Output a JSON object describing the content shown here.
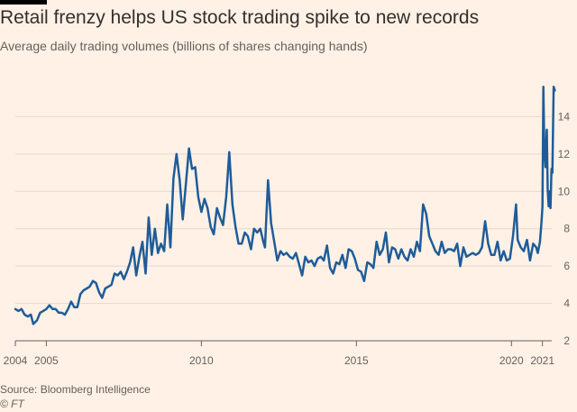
{
  "header": {
    "title": "Retail frenzy helps US stock trading spike to new records",
    "subtitle": "Average daily trading volumes (billions of shares changing hands)"
  },
  "footer": {
    "source": "Source: Bloomberg Intelligence",
    "credit": "© FT"
  },
  "colors": {
    "background": "#fff1e5",
    "line": "#1f5c99",
    "grid": "#e3d9cf",
    "text": "#66605c"
  },
  "chart_data": {
    "type": "line",
    "title": "Retail frenzy helps US stock trading spike to new records",
    "subtitle": "Average daily trading volumes (billions of shares changing hands)",
    "xlabel": "",
    "ylabel": "",
    "xlim": [
      2004.0,
      2021.3
    ],
    "ylim": [
      2,
      16
    ],
    "y_ticks": [
      2,
      4,
      6,
      8,
      10,
      12,
      14
    ],
    "x_tick_labels": [
      {
        "value": 2004.0,
        "label": "2004"
      },
      {
        "value": 2005.0,
        "label": "2005"
      },
      {
        "value": 2010.0,
        "label": "2010"
      },
      {
        "value": 2015.0,
        "label": "2015"
      },
      {
        "value": 2020.0,
        "label": "2020"
      },
      {
        "value": 2021.0,
        "label": "2021"
      }
    ],
    "grid": true,
    "series": [
      {
        "values": [
          [
            2004.0,
            3.7
          ],
          [
            2004.1,
            3.6
          ],
          [
            2004.2,
            3.7
          ],
          [
            2004.3,
            3.4
          ],
          [
            2004.4,
            3.3
          ],
          [
            2004.5,
            3.4
          ],
          [
            2004.58,
            2.9
          ],
          [
            2004.7,
            3.1
          ],
          [
            2004.8,
            3.5
          ],
          [
            2004.9,
            3.6
          ],
          [
            2005.0,
            3.7
          ],
          [
            2005.1,
            3.9
          ],
          [
            2005.2,
            3.7
          ],
          [
            2005.3,
            3.7
          ],
          [
            2005.4,
            3.5
          ],
          [
            2005.5,
            3.5
          ],
          [
            2005.6,
            3.4
          ],
          [
            2005.7,
            3.7
          ],
          [
            2005.8,
            4.1
          ],
          [
            2005.9,
            3.8
          ],
          [
            2006.0,
            3.8
          ],
          [
            2006.1,
            4.5
          ],
          [
            2006.2,
            4.7
          ],
          [
            2006.3,
            4.8
          ],
          [
            2006.4,
            4.9
          ],
          [
            2006.5,
            5.2
          ],
          [
            2006.6,
            5.1
          ],
          [
            2006.7,
            4.6
          ],
          [
            2006.8,
            4.3
          ],
          [
            2006.9,
            4.8
          ],
          [
            2007.0,
            4.9
          ],
          [
            2007.1,
            5.0
          ],
          [
            2007.2,
            5.6
          ],
          [
            2007.3,
            5.5
          ],
          [
            2007.4,
            5.7
          ],
          [
            2007.5,
            5.3
          ],
          [
            2007.6,
            5.7
          ],
          [
            2007.7,
            6.2
          ],
          [
            2007.8,
            7.0
          ],
          [
            2007.9,
            5.5
          ],
          [
            2008.0,
            6.5
          ],
          [
            2008.1,
            7.3
          ],
          [
            2008.2,
            5.6
          ],
          [
            2008.3,
            8.6
          ],
          [
            2008.4,
            6.6
          ],
          [
            2008.5,
            8.0
          ],
          [
            2008.6,
            6.7
          ],
          [
            2008.7,
            7.2
          ],
          [
            2008.8,
            6.8
          ],
          [
            2008.9,
            9.3
          ],
          [
            2009.0,
            7.0
          ],
          [
            2009.1,
            10.7
          ],
          [
            2009.2,
            12.0
          ],
          [
            2009.3,
            10.6
          ],
          [
            2009.4,
            8.5
          ],
          [
            2009.5,
            10.4
          ],
          [
            2009.6,
            12.3
          ],
          [
            2009.7,
            11.2
          ],
          [
            2009.8,
            11.3
          ],
          [
            2009.9,
            9.7
          ],
          [
            2010.0,
            8.9
          ],
          [
            2010.1,
            9.6
          ],
          [
            2010.2,
            9.1
          ],
          [
            2010.3,
            8.1
          ],
          [
            2010.4,
            7.7
          ],
          [
            2010.5,
            9.1
          ],
          [
            2010.6,
            8.6
          ],
          [
            2010.7,
            8.2
          ],
          [
            2010.8,
            9.7
          ],
          [
            2010.9,
            12.1
          ],
          [
            2011.0,
            9.3
          ],
          [
            2011.1,
            8.1
          ],
          [
            2011.2,
            7.2
          ],
          [
            2011.3,
            7.2
          ],
          [
            2011.4,
            7.8
          ],
          [
            2011.5,
            7.6
          ],
          [
            2011.6,
            6.9
          ],
          [
            2011.7,
            8.0
          ],
          [
            2011.8,
            7.8
          ],
          [
            2011.9,
            8.0
          ],
          [
            2012.0,
            7.3
          ],
          [
            2012.05,
            7.0
          ],
          [
            2012.15,
            10.6
          ],
          [
            2012.25,
            8.3
          ],
          [
            2012.35,
            7.3
          ],
          [
            2012.45,
            6.3
          ],
          [
            2012.55,
            6.8
          ],
          [
            2012.65,
            6.6
          ],
          [
            2012.75,
            6.7
          ],
          [
            2012.85,
            6.5
          ],
          [
            2012.95,
            6.4
          ],
          [
            2013.05,
            6.7
          ],
          [
            2013.15,
            6.1
          ],
          [
            2013.25,
            5.5
          ],
          [
            2013.35,
            6.5
          ],
          [
            2013.45,
            6.2
          ],
          [
            2013.55,
            6.3
          ],
          [
            2013.65,
            6.0
          ],
          [
            2013.75,
            6.4
          ],
          [
            2013.85,
            6.5
          ],
          [
            2013.95,
            6.3
          ],
          [
            2014.05,
            7.1
          ],
          [
            2014.15,
            5.9
          ],
          [
            2014.25,
            5.6
          ],
          [
            2014.35,
            6.2
          ],
          [
            2014.45,
            6.1
          ],
          [
            2014.55,
            6.6
          ],
          [
            2014.65,
            5.9
          ],
          [
            2014.75,
            6.9
          ],
          [
            2014.85,
            6.8
          ],
          [
            2014.95,
            6.4
          ],
          [
            2015.05,
            5.8
          ],
          [
            2015.15,
            5.7
          ],
          [
            2015.25,
            5.2
          ],
          [
            2015.35,
            6.2
          ],
          [
            2015.45,
            6.1
          ],
          [
            2015.55,
            5.9
          ],
          [
            2015.65,
            7.3
          ],
          [
            2015.75,
            6.6
          ],
          [
            2015.85,
            6.9
          ],
          [
            2015.95,
            7.8
          ],
          [
            2016.05,
            6.2
          ],
          [
            2016.15,
            7.0
          ],
          [
            2016.25,
            6.9
          ],
          [
            2016.35,
            6.4
          ],
          [
            2016.45,
            6.9
          ],
          [
            2016.55,
            6.5
          ],
          [
            2016.65,
            6.3
          ],
          [
            2016.75,
            6.9
          ],
          [
            2016.85,
            6.5
          ],
          [
            2016.95,
            7.3
          ],
          [
            2017.05,
            6.8
          ],
          [
            2017.15,
            9.3
          ],
          [
            2017.25,
            8.8
          ],
          [
            2017.35,
            7.6
          ],
          [
            2017.45,
            7.2
          ],
          [
            2017.55,
            6.8
          ],
          [
            2017.65,
            6.6
          ],
          [
            2017.75,
            7.3
          ],
          [
            2017.85,
            6.7
          ],
          [
            2017.95,
            6.9
          ],
          [
            2018.05,
            6.9
          ],
          [
            2018.15,
            6.8
          ],
          [
            2018.25,
            7.2
          ],
          [
            2018.35,
            6.0
          ],
          [
            2018.45,
            7.0
          ],
          [
            2018.55,
            6.5
          ],
          [
            2018.65,
            6.6
          ],
          [
            2018.75,
            6.7
          ],
          [
            2018.85,
            6.6
          ],
          [
            2018.95,
            6.7
          ],
          [
            2019.05,
            7.0
          ],
          [
            2019.15,
            8.4
          ],
          [
            2019.25,
            7.2
          ],
          [
            2019.35,
            6.6
          ],
          [
            2019.45,
            6.6
          ],
          [
            2019.55,
            7.3
          ],
          [
            2019.65,
            6.3
          ],
          [
            2019.75,
            6.8
          ],
          [
            2019.85,
            6.3
          ],
          [
            2019.95,
            6.4
          ],
          [
            2020.05,
            7.6
          ],
          [
            2020.15,
            9.3
          ],
          [
            2020.2,
            7.4
          ],
          [
            2020.3,
            7.0
          ],
          [
            2020.4,
            6.8
          ],
          [
            2020.5,
            7.4
          ],
          [
            2020.6,
            6.3
          ],
          [
            2020.7,
            7.2
          ],
          [
            2020.8,
            7.0
          ],
          [
            2020.85,
            6.7
          ],
          [
            2020.92,
            7.3
          ],
          [
            2020.97,
            8.4
          ],
          [
            2021.0,
            9.2
          ],
          [
            2021.03,
            15.6
          ],
          [
            2021.06,
            12.4
          ],
          [
            2021.1,
            11.3
          ],
          [
            2021.14,
            13.3
          ],
          [
            2021.17,
            10.1
          ],
          [
            2021.2,
            9.2
          ],
          [
            2021.23,
            10.0
          ],
          [
            2021.26,
            9.1
          ],
          [
            2021.29,
            11.2
          ],
          [
            2021.32,
            11.0
          ],
          [
            2021.36,
            15.6
          ],
          [
            2021.4,
            15.4
          ]
        ]
      }
    ]
  }
}
